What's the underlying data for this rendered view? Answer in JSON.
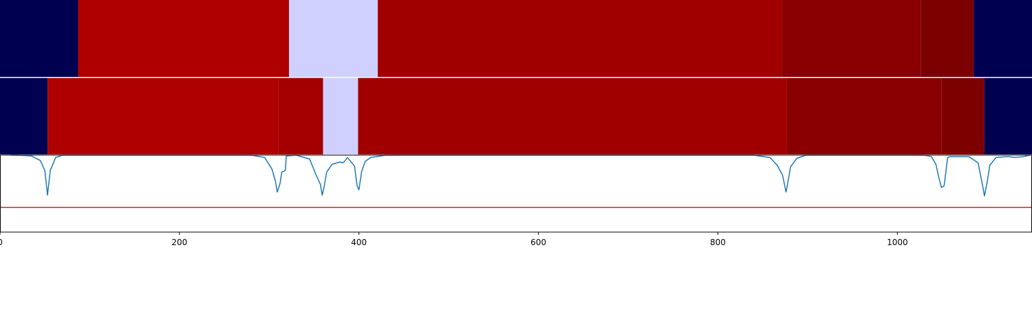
{
  "chart_data": {
    "type": "heatmap",
    "title": "",
    "xlabel": "",
    "ylabel": "",
    "xlim": [
      0,
      1150
    ],
    "grid": false,
    "xticks": [
      {
        "value": 0,
        "label": "0"
      },
      {
        "value": 200,
        "label": "200"
      },
      {
        "value": 400,
        "label": "400"
      },
      {
        "value": 600,
        "label": "600"
      },
      {
        "value": 800,
        "label": "800"
      },
      {
        "value": 1000,
        "label": "1000"
      }
    ],
    "tracks": [
      {
        "segments": [
          {
            "start": 0,
            "end": 87,
            "color": "#000050"
          },
          {
            "start": 87,
            "end": 322,
            "color": "#ae0000"
          },
          {
            "start": 322,
            "end": 421,
            "color": "#d0d0ff"
          },
          {
            "start": 421,
            "end": 871,
            "color": "#a00000"
          },
          {
            "start": 871,
            "end": 1026,
            "color": "#8a0000"
          },
          {
            "start": 1026,
            "end": 1085,
            "color": "#7c0000"
          },
          {
            "start": 1085,
            "end": 1150,
            "color": "#000050"
          }
        ]
      },
      {
        "segments": [
          {
            "start": 0,
            "end": 53,
            "color": "#000050"
          },
          {
            "start": 53,
            "end": 310,
            "color": "#ae0000"
          },
          {
            "start": 310,
            "end": 360,
            "color": "#a40000"
          },
          {
            "start": 360,
            "end": 399,
            "color": "#d0d0ff"
          },
          {
            "start": 399,
            "end": 877,
            "color": "#a00000"
          },
          {
            "start": 877,
            "end": 1049,
            "color": "#8a0000"
          },
          {
            "start": 1049,
            "end": 1097,
            "color": "#7c0000"
          },
          {
            "start": 1097,
            "end": 1150,
            "color": "#000050"
          }
        ]
      }
    ],
    "signal": {
      "color": "#1f77b4",
      "ylim": [
        0,
        1
      ],
      "baseline": 1.0,
      "x": [
        12,
        20,
        35,
        45,
        50,
        53,
        56,
        62,
        70,
        90,
        280,
        295,
        303,
        307,
        309,
        312,
        314,
        318,
        319,
        330,
        345,
        352,
        357,
        359,
        361,
        364,
        370,
        378,
        380,
        382,
        384,
        387,
        390,
        395,
        398,
        400,
        403,
        407,
        413,
        430,
        840,
        858,
        866,
        872,
        876,
        878,
        881,
        888,
        898,
        1030,
        1038,
        1043,
        1046,
        1049,
        1052,
        1054,
        1056,
        1058,
        1068,
        1080,
        1090,
        1095,
        1097,
        1100,
        1103,
        1110,
        1120,
        1125,
        1130,
        1140,
        1148
      ],
      "y": [
        1.0,
        1.0,
        0.99,
        0.93,
        0.8,
        0.48,
        0.8,
        0.97,
        1.0,
        1.0,
        1.0,
        0.97,
        0.82,
        0.66,
        0.52,
        0.63,
        0.78,
        0.8,
        0.99,
        1.0,
        0.95,
        0.75,
        0.62,
        0.48,
        0.58,
        0.78,
        0.88,
        0.91,
        0.91,
        0.9,
        0.92,
        0.97,
        0.93,
        0.86,
        0.6,
        0.55,
        0.79,
        0.92,
        0.97,
        1.0,
        1.0,
        0.97,
        0.87,
        0.74,
        0.52,
        0.65,
        0.85,
        0.96,
        1.0,
        1.0,
        0.98,
        0.88,
        0.72,
        0.58,
        0.6,
        0.78,
        0.97,
        0.98,
        0.98,
        0.98,
        0.9,
        0.6,
        0.47,
        0.65,
        0.87,
        0.97,
        0.98,
        0.98,
        0.97,
        0.98,
        1.0
      ]
    },
    "threshold": {
      "value": 0.32,
      "color": "#e41a1c"
    }
  }
}
